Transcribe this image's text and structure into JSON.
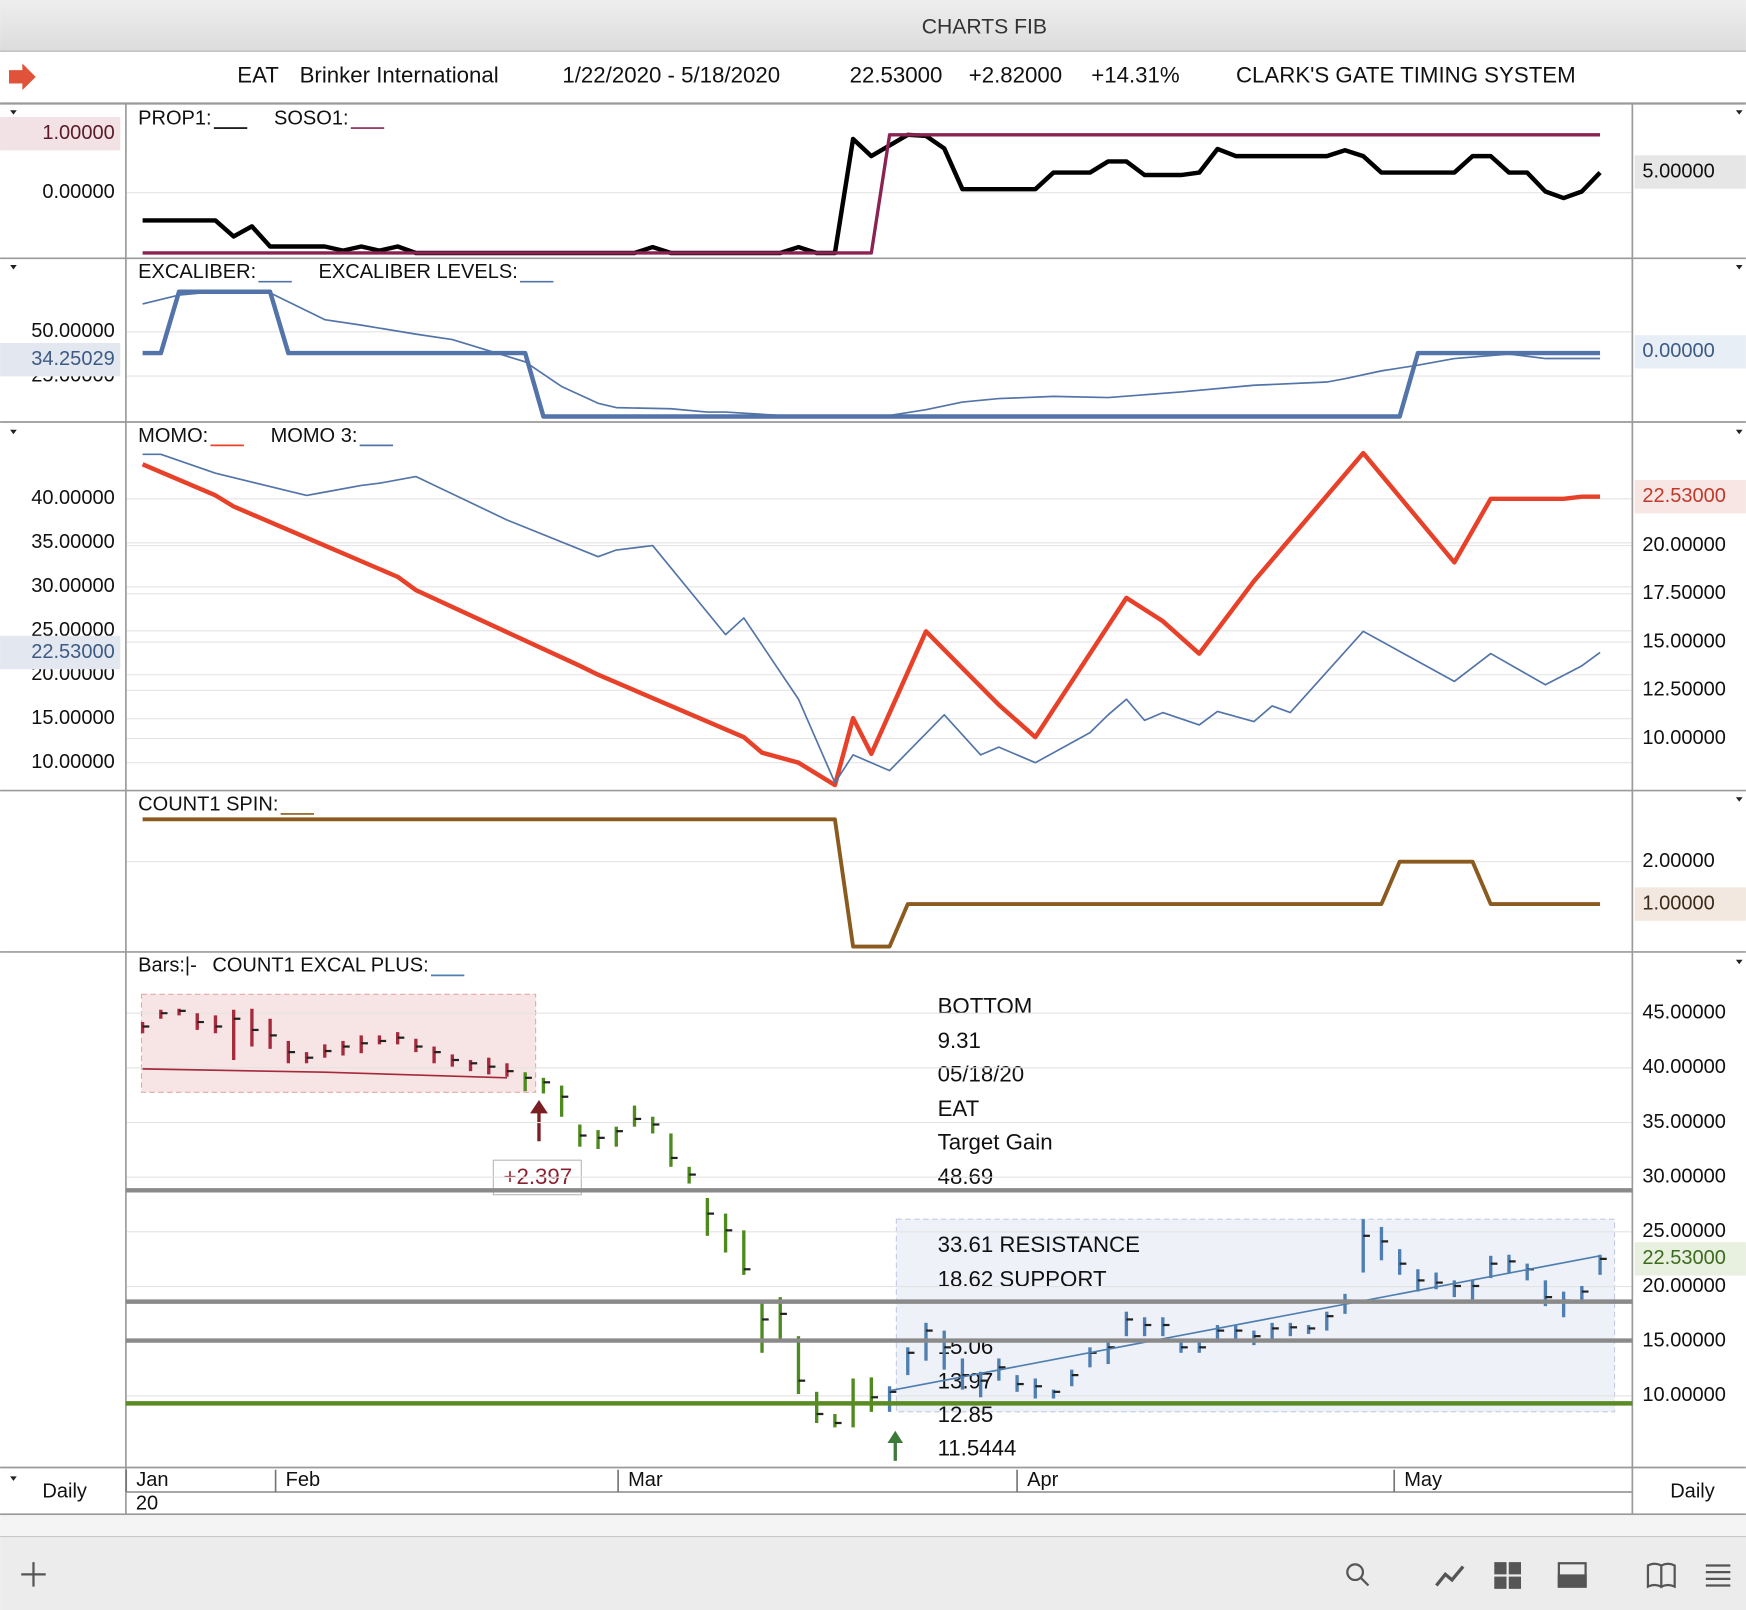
{
  "window": {
    "title": "CHARTS FIB",
    "symbol": "EAT",
    "company": "Brinker International",
    "date_range": "1/22/2020 - 5/18/2020",
    "last": "22.53000",
    "change": "+2.82000",
    "change_pct": "+14.31%",
    "system": "CLARK'S GATE TIMING SYSTEM",
    "timeframe_left": "Daily",
    "timeframe_right": "Daily"
  },
  "chart_data": [
    {
      "type": "line",
      "xlim": [
        0,
        80
      ],
      "ylim": [
        -1.11,
        1.49
      ],
      "yticks": [
        {
          "value": 0,
          "label": "0.00000"
        }
      ],
      "y2lim": [
        0,
        8.9
      ],
      "markers": [
        {
          "value": 1,
          "label": "1.00000",
          "axis": "y",
          "color": "#f2e1e5",
          "text_color": "#5a1a2a"
        },
        {
          "value": 5,
          "label": "5.00000",
          "axis": "y2",
          "color": "#e6e6e6",
          "text_color": "#111111"
        }
      ],
      "series": [
        {
          "name": "PROP1:",
          "color": "#000000",
          "line_width": 4,
          "x": [
            0,
            4,
            5,
            6,
            7,
            10,
            11,
            12,
            13,
            14,
            15,
            27,
            28,
            29,
            35,
            36,
            37,
            38,
            39,
            40,
            42,
            43,
            44,
            45,
            49,
            50,
            52,
            53,
            54,
            55,
            57,
            58,
            59,
            60,
            65,
            66,
            67,
            68,
            72,
            73,
            74,
            75,
            76,
            77,
            78,
            79,
            80
          ],
          "values": [
            -0.47,
            -0.47,
            -0.74,
            -0.57,
            -0.91,
            -0.91,
            -0.98,
            -0.91,
            -0.98,
            -0.91,
            -1.02,
            -1.02,
            -0.92,
            -1.02,
            -1.02,
            -0.92,
            -1.02,
            -1.02,
            0.91,
            0.62,
            0.98,
            0.96,
            0.75,
            0.06,
            0.06,
            0.34,
            0.34,
            0.53,
            0.53,
            0.3,
            0.3,
            0.34,
            0.74,
            0.62,
            0.62,
            0.72,
            0.62,
            0.34,
            0.34,
            0.62,
            0.62,
            0.34,
            0.34,
            0.02,
            -0.09,
            0.02,
            0.34
          ]
        },
        {
          "name": "SOSO1:",
          "color": "#8b2252",
          "line_width": 3,
          "x": [
            0,
            40,
            41,
            80
          ],
          "values": [
            -1.02,
            -1.02,
            0.98,
            0.98
          ]
        }
      ]
    },
    {
      "type": "line",
      "xlim": [
        0,
        80
      ],
      "ylim": [
        -1.0,
        91.6
      ],
      "yticks": [
        {
          "value": 50,
          "label": "50.00000"
        },
        {
          "value": 25,
          "label": "25.00000"
        }
      ],
      "y2lim": [
        -1,
        1.333
      ],
      "markers": [
        {
          "value": 34.25029,
          "label": "34.25029",
          "axis": "y",
          "color": "#e3e8f0",
          "text_color": "#3d5a85"
        },
        {
          "value": 0,
          "label": "0.00000",
          "axis": "y2",
          "color": "#e8eef5",
          "text_color": "#3d5a85"
        }
      ],
      "series": [
        {
          "name": "EXCALIBER:",
          "color": "#5274a8",
          "line_width": 1.5,
          "x": [
            0,
            2,
            4,
            7,
            10,
            12,
            15,
            17,
            19,
            21,
            23,
            25,
            26,
            29,
            31,
            32,
            35,
            41,
            43,
            45,
            47,
            50,
            53,
            57,
            61,
            65,
            66,
            68,
            70,
            72,
            75,
            77,
            80
          ],
          "values": [
            65.8,
            70.8,
            72.7,
            72.1,
            56.9,
            53.8,
            48.7,
            45.6,
            39.3,
            33.0,
            19.1,
            9.6,
            7.1,
            6.5,
            4.6,
            4.6,
            2.7,
            2.7,
            5.9,
            10.3,
            12.2,
            13.5,
            12.8,
            16.0,
            19.8,
            21.6,
            23.5,
            27.9,
            31.1,
            34.9,
            37.4,
            34.9,
            34.9
          ]
        },
        {
          "name": "EXCALIBER LEVELS:",
          "color": "#5274a8",
          "line_width": 4,
          "x": [
            0,
            1,
            2,
            7,
            8,
            21,
            22,
            69,
            70,
            80
          ],
          "values": [
            38.0,
            38.0,
            72.7,
            72.7,
            38.0,
            38.0,
            2.1,
            2.1,
            38.0,
            38.0
          ]
        }
      ]
    },
    {
      "type": "line",
      "xlim": [
        0,
        80
      ],
      "ylim": [
        6.84,
        48.73
      ],
      "yticks": [
        {
          "value": 10,
          "label": "10.00000"
        },
        {
          "value": 15,
          "label": "15.00000"
        },
        {
          "value": 20,
          "label": "20.00000"
        },
        {
          "value": 25,
          "label": "25.00000"
        },
        {
          "value": 30,
          "label": "30.00000"
        },
        {
          "value": 35,
          "label": "35.00000"
        },
        {
          "value": 40,
          "label": "40.00000"
        }
      ],
      "y2lim": [
        7.31,
        26.4
      ],
      "y2ticks": [
        {
          "value": 10,
          "label": "10.00000"
        },
        {
          "value": 12.5,
          "label": "12.50000"
        },
        {
          "value": 15,
          "label": "15.00000"
        },
        {
          "value": 17.5,
          "label": "17.50000"
        },
        {
          "value": 20,
          "label": "20.00000"
        }
      ],
      "markers": [
        {
          "value": 22.53,
          "label": "22.53000",
          "axis": "y",
          "color": "#e3e8f0",
          "text_color": "#3d5a85"
        },
        {
          "value": 22.53,
          "label": "22.53000",
          "axis": "y2",
          "color": "#f7e6e3",
          "text_color": "#c0392b"
        }
      ],
      "series": [
        {
          "name": "MOMO:",
          "color": "#e8412a",
          "line_width": 4,
          "axis": "y2",
          "x": [
            0,
            4,
            5,
            10,
            14,
            15,
            24,
            25,
            33,
            34,
            36,
            38,
            39,
            40,
            43,
            45,
            47,
            49,
            54,
            56,
            58,
            61,
            67,
            72,
            74,
            78,
            79,
            80
          ],
          "values": [
            24.21,
            22.6,
            22.02,
            20.0,
            18.38,
            17.69,
            13.77,
            13.31,
            10.07,
            9.27,
            8.75,
            7.59,
            11.06,
            9.21,
            15.56,
            13.65,
            11.75,
            10.07,
            17.29,
            16.08,
            14.4,
            18.15,
            24.79,
            19.13,
            22.42,
            22.42,
            22.53,
            22.53
          ]
        },
        {
          "name": "MOMO 3:",
          "color": "#5274a8",
          "line_width": 1.5,
          "x": [
            0,
            1,
            4,
            9,
            10,
            12,
            13,
            15,
            20,
            25,
            26,
            28,
            32,
            33,
            36,
            38,
            39,
            41,
            44,
            46,
            47,
            49,
            52,
            53,
            54,
            55,
            56,
            58,
            59,
            61,
            62,
            63,
            67,
            69,
            72,
            74,
            77,
            79,
            80
          ],
          "values": [
            45.06,
            45.06,
            42.91,
            40.38,
            40.76,
            41.52,
            41.77,
            42.53,
            37.59,
            33.42,
            34.18,
            34.68,
            24.56,
            26.46,
            17.22,
            7.72,
            10.89,
            9.11,
            15.44,
            10.89,
            11.77,
            10.0,
            13.42,
            15.44,
            17.22,
            14.81,
            15.7,
            14.3,
            15.82,
            14.68,
            16.46,
            15.7,
            24.94,
            22.66,
            19.24,
            22.41,
            18.86,
            21.01,
            22.53
          ]
        }
      ]
    },
    {
      "type": "line",
      "xlim": [
        0,
        80
      ],
      "y2lim": [
        -0.13,
        3.68
      ],
      "y2ticks": [
        {
          "value": 2,
          "label": "2.00000"
        }
      ],
      "markers": [
        {
          "value": 1,
          "label": "1.00000",
          "axis": "y2",
          "color": "#f2e8df",
          "text_color": "#3a2a1a"
        }
      ],
      "series": [
        {
          "name": "COUNT1 SPIN:",
          "color": "#8b5a1e",
          "line_width": 3.5,
          "axis": "y2",
          "x": [
            0,
            38,
            39,
            41,
            42,
            68,
            69,
            73,
            74,
            80
          ],
          "values": [
            3,
            3,
            0,
            0,
            1,
            1,
            2,
            2,
            1,
            1
          ]
        }
      ]
    },
    {
      "type": "ohlc",
      "xlim": [
        0,
        80
      ],
      "y2lim": [
        3.45,
        50.6
      ],
      "y2ticks": [
        {
          "value": 10,
          "label": "10.00000"
        },
        {
          "value": 15,
          "label": "15.00000"
        },
        {
          "value": 20,
          "label": "20.00000"
        },
        {
          "value": 25,
          "label": "25.00000"
        },
        {
          "value": 30,
          "label": "30.00000"
        },
        {
          "value": 35,
          "label": "35.00000"
        },
        {
          "value": 40,
          "label": "40.00000"
        },
        {
          "value": 45,
          "label": "45.00000"
        }
      ],
      "markers": [
        {
          "value": 22.53,
          "label": "22.53000",
          "axis": "y2",
          "color": "#e8f0e0",
          "text_color": "#3c6b1e"
        }
      ],
      "bars_label": "Bars:|-",
      "bars": [
        {
          "color": "#a52a3c",
          "x": [
            0,
            1,
            2,
            3,
            4,
            5,
            6,
            7,
            8,
            9,
            10,
            11,
            12,
            13,
            14,
            15,
            16,
            17,
            18,
            19,
            20
          ],
          "high": [
            44.19,
            45.31,
            45.41,
            45.0,
            44.8,
            45.31,
            45.41,
            44.49,
            42.46,
            41.44,
            42.15,
            42.46,
            42.97,
            42.97,
            43.27,
            42.66,
            41.95,
            41.23,
            40.72,
            40.93,
            40.42
          ],
          "low": [
            43.17,
            44.49,
            44.8,
            43.47,
            43.17,
            40.72,
            41.95,
            41.74,
            40.42,
            40.42,
            40.93,
            41.13,
            41.34,
            42.15,
            42.15,
            41.44,
            40.42,
            40.11,
            39.7,
            39.4,
            39.19
          ],
          "close": [
            43.78,
            45.0,
            45.21,
            44.19,
            43.78,
            44.49,
            43.47,
            42.97,
            41.44,
            40.93,
            41.54,
            41.95,
            42.25,
            42.46,
            42.76,
            41.95,
            41.44,
            40.72,
            40.42,
            40.11,
            39.7
          ]
        },
        {
          "color": "#4e8a1e",
          "x": [
            21,
            22,
            23,
            24,
            25,
            26,
            27,
            28,
            29,
            30,
            31,
            32,
            33,
            34,
            35,
            36,
            37,
            38,
            39,
            40
          ],
          "high": [
            39.6,
            39.09,
            38.38,
            34.82,
            34.31,
            34.62,
            36.55,
            35.53,
            34.0,
            30.95,
            28.1,
            26.67,
            25.14,
            18.72,
            19.03,
            15.46,
            10.37,
            8.34,
            11.59,
            11.69
          ],
          "low": [
            37.87,
            37.66,
            35.53,
            32.79,
            32.58,
            32.79,
            34.62,
            34.0,
            30.95,
            29.42,
            24.64,
            23.11,
            21.07,
            13.94,
            14.95,
            10.17,
            7.52,
            7.12,
            7.12,
            8.54
          ],
          "close": [
            39.09,
            38.68,
            37.36,
            33.81,
            33.6,
            34.21,
            35.33,
            34.82,
            31.76,
            30.24,
            26.67,
            25.14,
            21.58,
            16.99,
            17.5,
            11.39,
            8.34,
            7.52,
            9.36,
            9.87
          ]
        },
        {
          "color": "#4f7fb0",
          "x": [
            41,
            42,
            43,
            44,
            45,
            46,
            47,
            48,
            49,
            50,
            51,
            52,
            53,
            54,
            55,
            56,
            57,
            58,
            59,
            60,
            61,
            62,
            63,
            64,
            65,
            66,
            67,
            68,
            69,
            70,
            71,
            72,
            73,
            74,
            75,
            76,
            77,
            78,
            79,
            80
          ],
          "high": [
            10.88,
            14.44,
            16.68,
            15.97,
            13.42,
            12.2,
            13.42,
            11.9,
            11.59,
            10.57,
            12.4,
            14.44,
            14.95,
            17.7,
            17.19,
            17.19,
            14.95,
            14.95,
            16.48,
            16.48,
            15.97,
            16.68,
            16.68,
            16.48,
            17.7,
            19.33,
            26.16,
            25.45,
            23.42,
            21.58,
            21.28,
            20.56,
            20.56,
            22.81,
            22.91,
            22.09,
            20.56,
            19.54,
            20.05,
            22.91
          ],
          "low": [
            8.54,
            11.9,
            13.22,
            12.4,
            10.57,
            9.87,
            11.39,
            10.37,
            9.76,
            9.76,
            10.88,
            12.61,
            12.91,
            15.46,
            15.46,
            15.46,
            13.94,
            13.94,
            15.16,
            15.16,
            14.64,
            15.16,
            15.46,
            15.66,
            15.97,
            17.5,
            21.28,
            22.4,
            21.07,
            19.54,
            19.75,
            19.03,
            18.72,
            20.77,
            21.28,
            20.56,
            18.21,
            17.19,
            18.72,
            21.07
          ],
          "close": [
            10.37,
            13.94,
            15.97,
            14.44,
            11.9,
            11.39,
            12.61,
            11.08,
            10.88,
            10.37,
            11.9,
            13.94,
            14.44,
            16.99,
            16.48,
            16.48,
            14.44,
            14.44,
            15.97,
            15.97,
            15.46,
            16.17,
            16.27,
            16.17,
            17.29,
            18.72,
            24.64,
            24.13,
            22.09,
            20.56,
            20.36,
            20.05,
            20.05,
            22.09,
            22.3,
            21.58,
            19.03,
            18.72,
            19.54,
            22.53
          ]
        }
      ],
      "levels": [
        {
          "value": 28.8,
          "color": "#8a8a8a"
        },
        {
          "value": 18.62,
          "color": "#8a8a8a"
        },
        {
          "value": 15.06,
          "color": "#8a8a8a"
        },
        {
          "value": 9.31,
          "color": "#5b8c24"
        }
      ],
      "series": [
        {
          "color": "#a52a3c",
          "line_width": 1.5,
          "axis": "y2",
          "x": [
            0,
            10,
            20
          ],
          "values": [
            39.91,
            39.6,
            39.09
          ]
        },
        {
          "name": "COUNT1 EXCAL PLUS:",
          "color": "#4f7fb0",
          "line_width": 1.5,
          "axis": "y2",
          "x": [
            41,
            80
          ],
          "values": [
            10.48,
            22.81
          ]
        }
      ],
      "annotations": [
        "BOTTOM",
        "9.31",
        "05/18/20",
        "EAT",
        "Target Gain",
        "48.69",
        "33.61 RESISTANCE",
        "18.62 SUPPORT",
        "15.06",
        "13.97",
        "12.85",
        "11.5444"
      ],
      "box_label": "+2.397",
      "xticks": [
        {
          "value": -0.9,
          "label": "Jan"
        },
        {
          "value": 7.3,
          "label": "Feb"
        },
        {
          "value": 26.1,
          "label": "Mar"
        },
        {
          "value": 48,
          "label": "Apr"
        },
        {
          "value": 68.7,
          "label": "May"
        }
      ],
      "x_year_label": "20"
    }
  ]
}
